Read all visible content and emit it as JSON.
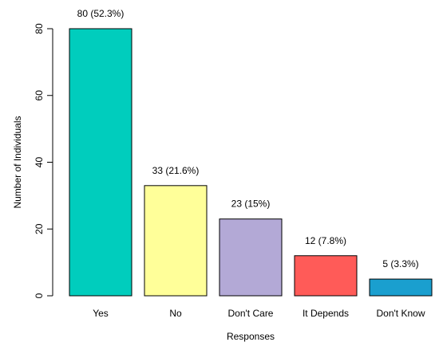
{
  "chart_data": {
    "type": "bar",
    "categories": [
      "Yes",
      "No",
      "Don't Care",
      "It Depends",
      "Don't Know"
    ],
    "values": [
      80,
      33,
      23,
      12,
      5
    ],
    "data_labels": [
      "80 (52.3%)",
      "33 (21.6%)",
      "23 (15%)",
      "12 (7.8%)",
      "5 (3.3%)"
    ],
    "colors": [
      "#00cdbd",
      "#ffff99",
      "#b3a9d6",
      "#ff5b58",
      "#1a9fcf"
    ],
    "title": "",
    "xlabel": "Responses",
    "ylabel": "Number of Individuals",
    "ylim": [
      0,
      80
    ],
    "yticks": [
      0,
      20,
      40,
      60,
      80
    ],
    "grid": false,
    "legend": "none"
  }
}
